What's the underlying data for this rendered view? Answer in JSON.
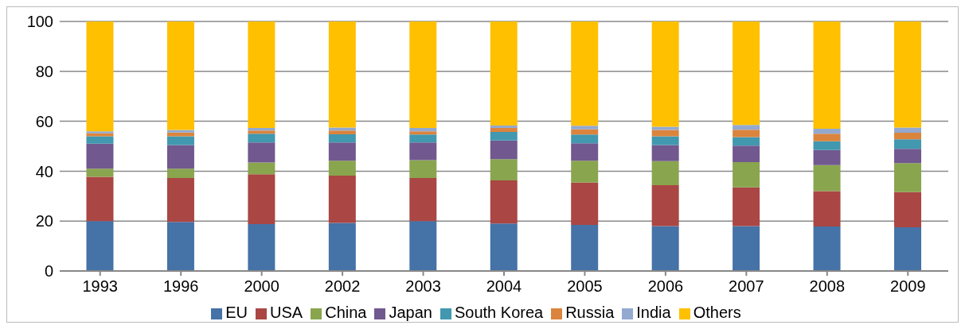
{
  "chart_data": {
    "type": "bar",
    "stacked": true,
    "categories": [
      "1993",
      "1996",
      "2000",
      "2002",
      "2003",
      "2004",
      "2005",
      "2006",
      "2007",
      "2008",
      "2009"
    ],
    "series": [
      {
        "name": "EU",
        "color": "#4572a7",
        "values": [
          20,
          19.7,
          18.8,
          19.3,
          20,
          19,
          18.5,
          18,
          18,
          17.8,
          17.5
        ]
      },
      {
        "name": "USA",
        "color": "#aa4643",
        "values": [
          17.7,
          17.6,
          20,
          18.9,
          17.3,
          17.3,
          16.9,
          16.4,
          15.5,
          14.2,
          14.1
        ]
      },
      {
        "name": "China",
        "color": "#89a54e",
        "values": [
          3.3,
          3.7,
          4.7,
          6,
          7.1,
          8.5,
          8.8,
          9.6,
          10.1,
          10.4,
          11.6
        ]
      },
      {
        "name": "Japan",
        "color": "#71588f",
        "values": [
          10,
          9.5,
          8,
          7.3,
          7.1,
          7.5,
          7,
          6.5,
          6.6,
          6.1,
          5.8
        ]
      },
      {
        "name": "South Korea",
        "color": "#4198af",
        "values": [
          3,
          3.5,
          3.5,
          3.3,
          3.2,
          3.4,
          3.5,
          3.5,
          3.5,
          3.5,
          3.8
        ]
      },
      {
        "name": "Russia",
        "color": "#db843d",
        "values": [
          1.2,
          1.5,
          1.3,
          1.5,
          1.3,
          1.6,
          2.1,
          2.5,
          2.9,
          3,
          2.6
        ]
      },
      {
        "name": "India",
        "color": "#93a9cf",
        "values": [
          0.8,
          1,
          1,
          1.2,
          1.3,
          1,
          1.4,
          1.3,
          1.9,
          2,
          2.1
        ]
      },
      {
        "name": "Others",
        "color": "#ffc000",
        "values": [
          44,
          43.5,
          42.7,
          42.5,
          42.7,
          41.7,
          41.8,
          42.2,
          41.5,
          43,
          42.5
        ]
      }
    ],
    "ylim": [
      0,
      100
    ],
    "yticks": [
      0,
      20,
      40,
      60,
      80,
      100
    ],
    "grid": "y",
    "legend": "bottom"
  }
}
